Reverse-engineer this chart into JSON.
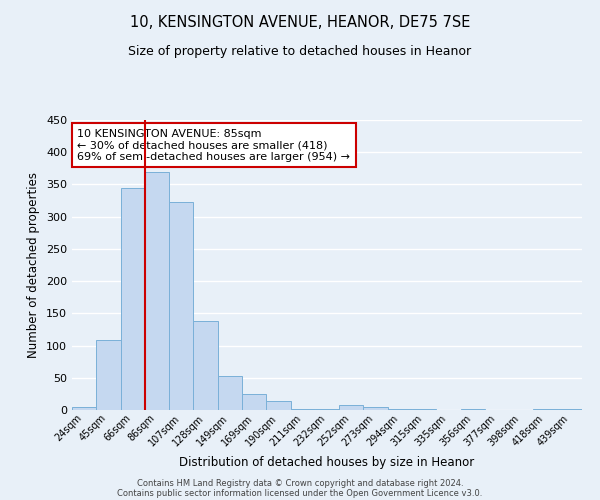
{
  "title": "10, KENSINGTON AVENUE, HEANOR, DE75 7SE",
  "subtitle": "Size of property relative to detached houses in Heanor",
  "xlabel": "Distribution of detached houses by size in Heanor",
  "ylabel": "Number of detached properties",
  "bar_color": "#c5d8f0",
  "bar_edge_color": "#7ab0d8",
  "background_color": "#e8f0f8",
  "grid_color": "#ffffff",
  "categories": [
    "24sqm",
    "45sqm",
    "66sqm",
    "86sqm",
    "107sqm",
    "128sqm",
    "149sqm",
    "169sqm",
    "190sqm",
    "211sqm",
    "232sqm",
    "252sqm",
    "273sqm",
    "294sqm",
    "315sqm",
    "335sqm",
    "356sqm",
    "377sqm",
    "398sqm",
    "418sqm",
    "439sqm"
  ],
  "values": [
    5,
    108,
    345,
    370,
    322,
    138,
    53,
    25,
    14,
    1,
    1,
    8,
    4,
    2,
    1,
    0,
    2,
    0,
    0,
    1,
    2
  ],
  "red_line_index": 3,
  "annotation_text": "10 KENSINGTON AVENUE: 85sqm\n← 30% of detached houses are smaller (418)\n69% of semi-detached houses are larger (954) →",
  "annotation_box_color": "#ffffff",
  "annotation_box_edge_color": "#cc0000",
  "ylim": [
    0,
    450
  ],
  "yticks": [
    0,
    50,
    100,
    150,
    200,
    250,
    300,
    350,
    400,
    450
  ],
  "footer_line1": "Contains HM Land Registry data © Crown copyright and database right 2024.",
  "footer_line2": "Contains public sector information licensed under the Open Government Licence v3.0."
}
